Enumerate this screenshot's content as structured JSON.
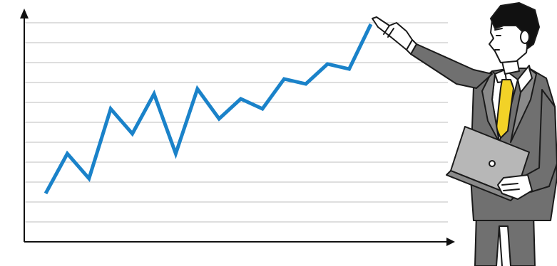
{
  "chart_data": {
    "type": "line",
    "title": "",
    "xlabel": "",
    "ylabel": "",
    "x": [
      1,
      2,
      3,
      4,
      5,
      6,
      7,
      8,
      9,
      10,
      11,
      12,
      13,
      14,
      15,
      16
    ],
    "series": [
      {
        "values": [
          4,
          12,
          7,
          21,
          16,
          24,
          12,
          25,
          19,
          23,
          21,
          27,
          26,
          30,
          29,
          38
        ]
      }
    ],
    "ylim": [
      0,
      40
    ],
    "grid": true,
    "legend": "none",
    "line_color": "#1a82c9",
    "axis_color": "#111111",
    "grid_color": "#bdbdbd"
  },
  "illustration": {
    "subject": "businessman-pointing-at-chart",
    "suit_color": "#707070",
    "suit_light_color": "#8a8a8a",
    "tie_color": "#f2d227",
    "shirt_color": "#ffffff",
    "skin_color": "#ffffff",
    "hair_color": "#111111",
    "laptop_color": "#b7b7b7",
    "outline_color": "#1a1a1a"
  }
}
